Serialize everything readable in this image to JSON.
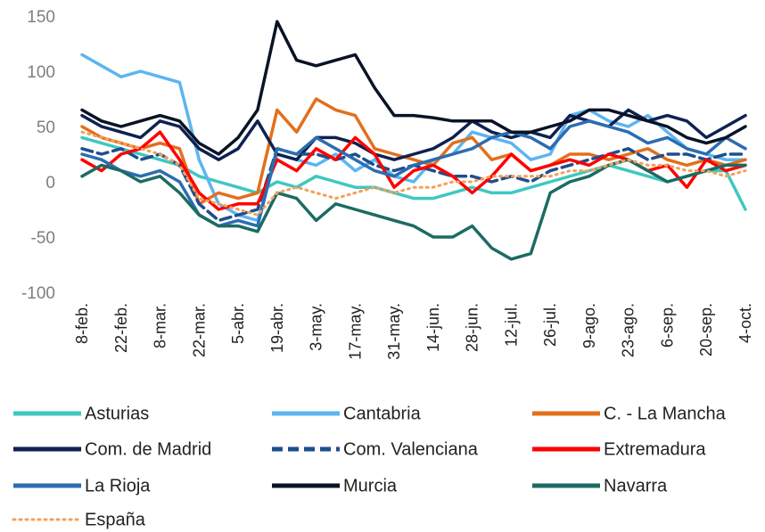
{
  "chart_data": {
    "type": "line",
    "categories": [
      "8-feb.",
      null,
      "22-feb.",
      null,
      "8-mar.",
      null,
      "22-mar.",
      null,
      "5-abr.",
      null,
      "19-abr.",
      null,
      "3-may.",
      null,
      "17-may.",
      null,
      "31-may.",
      null,
      "14-jun.",
      null,
      "28-jun.",
      null,
      "12-jul.",
      null,
      "26-jul.",
      null,
      "9-ago.",
      null,
      "23-ago.",
      null,
      "6-sep.",
      null,
      "20-sep.",
      null,
      "4-oct."
    ],
    "ylim": [
      -100,
      150
    ],
    "yticks": [
      -100,
      -50,
      0,
      50,
      100,
      150
    ],
    "grid": false,
    "legend": "bottom",
    "series": [
      {
        "name": "Asturias",
        "color": "#3fc8bf",
        "style": "solid",
        "values": [
          40,
          35,
          30,
          25,
          20,
          15,
          5,
          0,
          -5,
          -10,
          0,
          -5,
          5,
          0,
          -5,
          -5,
          -10,
          -15,
          -15,
          -10,
          -5,
          -10,
          -10,
          -5,
          0,
          5,
          10,
          15,
          10,
          5,
          0,
          5,
          10,
          10,
          -25
        ]
      },
      {
        "name": "Cantabria",
        "color": "#5cb5f0",
        "style": "solid",
        "values": [
          115,
          105,
          95,
          100,
          95,
          90,
          20,
          -20,
          -30,
          -35,
          25,
          20,
          15,
          25,
          10,
          20,
          5,
          0,
          20,
          25,
          45,
          40,
          35,
          20,
          25,
          60,
          65,
          55,
          50,
          60,
          45,
          30,
          25,
          20,
          20
        ]
      },
      {
        "name": "C. - La Mancha",
        "color": "#e36f1b",
        "style": "solid",
        "values": [
          50,
          40,
          35,
          30,
          35,
          30,
          -20,
          -10,
          -15,
          -10,
          65,
          45,
          75,
          65,
          60,
          30,
          25,
          20,
          15,
          35,
          40,
          20,
          25,
          10,
          15,
          25,
          25,
          20,
          25,
          30,
          20,
          15,
          20,
          15,
          20
        ]
      },
      {
        "name": "Com. de Madrid",
        "color": "#0e2150",
        "style": "solid",
        "values": [
          60,
          50,
          45,
          40,
          55,
          50,
          30,
          20,
          30,
          55,
          25,
          20,
          40,
          40,
          35,
          25,
          20,
          25,
          30,
          40,
          55,
          45,
          40,
          45,
          40,
          60,
          55,
          50,
          65,
          55,
          60,
          55,
          40,
          50,
          60
        ]
      },
      {
        "name": "Com. Valenciana",
        "color": "#1f4e8c",
        "style": "dashed",
        "values": [
          30,
          25,
          30,
          20,
          25,
          15,
          -20,
          -35,
          -30,
          -25,
          30,
          25,
          25,
          20,
          25,
          15,
          10,
          15,
          10,
          5,
          5,
          0,
          5,
          0,
          10,
          15,
          20,
          25,
          30,
          20,
          25,
          25,
          20,
          25,
          25
        ]
      },
      {
        "name": "Extremadura",
        "color": "#ff0000",
        "style": "solid",
        "values": [
          20,
          10,
          25,
          30,
          45,
          20,
          -10,
          -25,
          -20,
          -20,
          20,
          10,
          30,
          20,
          40,
          25,
          -5,
          10,
          15,
          5,
          -10,
          5,
          25,
          10,
          15,
          20,
          15,
          25,
          20,
          10,
          15,
          -5,
          20,
          10,
          15
        ]
      },
      {
        "name": "La Rioja",
        "color": "#2b6db1",
        "style": "solid",
        "values": [
          25,
          20,
          10,
          5,
          10,
          0,
          -30,
          -40,
          -35,
          -40,
          30,
          25,
          40,
          30,
          20,
          10,
          5,
          15,
          20,
          25,
          30,
          40,
          45,
          40,
          30,
          50,
          55,
          50,
          45,
          35,
          40,
          30,
          25,
          40,
          30
        ]
      },
      {
        "name": "Murcia",
        "color": "#0a1326",
        "style": "solid",
        "values": [
          65,
          55,
          50,
          55,
          60,
          55,
          35,
          25,
          40,
          65,
          145,
          110,
          105,
          110,
          115,
          85,
          60,
          60,
          58,
          55,
          55,
          55,
          45,
          45,
          50,
          55,
          65,
          65,
          60,
          55,
          50,
          40,
          35,
          40,
          50
        ]
      },
      {
        "name": "Navarra",
        "color": "#1c6b63",
        "style": "solid",
        "values": [
          5,
          15,
          10,
          0,
          5,
          -10,
          -30,
          -40,
          -40,
          -45,
          -10,
          -15,
          -35,
          -20,
          -25,
          -30,
          -35,
          -40,
          -50,
          -50,
          -40,
          -60,
          -70,
          -65,
          -10,
          0,
          5,
          15,
          20,
          10,
          0,
          5,
          10,
          15,
          15
        ]
      },
      {
        "name": "España",
        "color": "#f4a05a",
        "style": "dotted",
        "values": [
          45,
          40,
          35,
          30,
          25,
          15,
          -15,
          -20,
          -25,
          -30,
          -10,
          -5,
          -10,
          -15,
          -10,
          -5,
          -10,
          -5,
          -5,
          0,
          0,
          5,
          5,
          5,
          5,
          10,
          10,
          15,
          20,
          15,
          15,
          10,
          10,
          5,
          10
        ]
      }
    ]
  }
}
